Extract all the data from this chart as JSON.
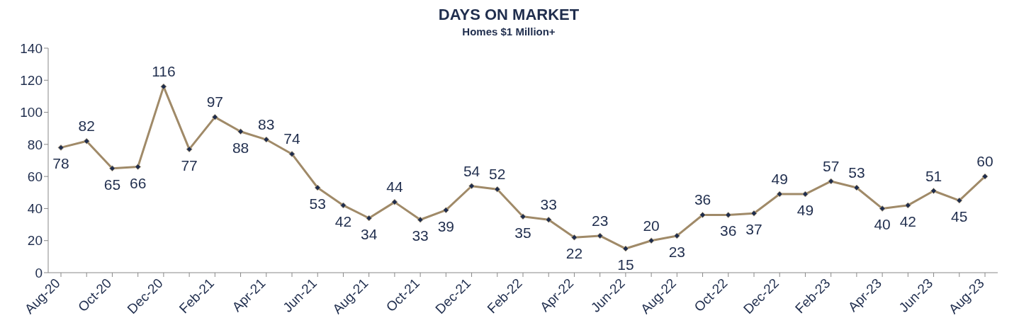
{
  "chart_data": {
    "type": "line",
    "title": "DAYS ON MARKET",
    "subtitle": "Homes $1 Million+",
    "categories": [
      "Aug-20",
      null,
      "Oct-20",
      null,
      "Dec-20",
      null,
      "Feb-21",
      null,
      "Apr-21",
      null,
      "Jun-21",
      null,
      "Aug-21",
      null,
      "Oct-21",
      null,
      "Dec-21",
      null,
      "Feb-22",
      null,
      "Apr-22",
      null,
      "Jun-22",
      null,
      "Aug-22",
      null,
      "Oct-22",
      null,
      "Dec-22",
      null,
      "Feb-23",
      null,
      "Apr-23",
      null,
      "Jun-23",
      null,
      "Aug-23"
    ],
    "series": [
      {
        "color": "#a08a68",
        "values": [
          78,
          82,
          65,
          66,
          116,
          77,
          97,
          88,
          83,
          74,
          53,
          42,
          34,
          44,
          33,
          39,
          54,
          52,
          35,
          33,
          22,
          23,
          15,
          20,
          23,
          36,
          36,
          37,
          49,
          49,
          57,
          53,
          40,
          42,
          51,
          45,
          60
        ]
      }
    ],
    "ylim": [
      0,
      140
    ],
    "yticks": [
      0,
      20,
      40,
      60,
      80,
      100,
      120,
      140
    ],
    "marker": "diamond",
    "line_style": "solid",
    "data_labels": true
  }
}
